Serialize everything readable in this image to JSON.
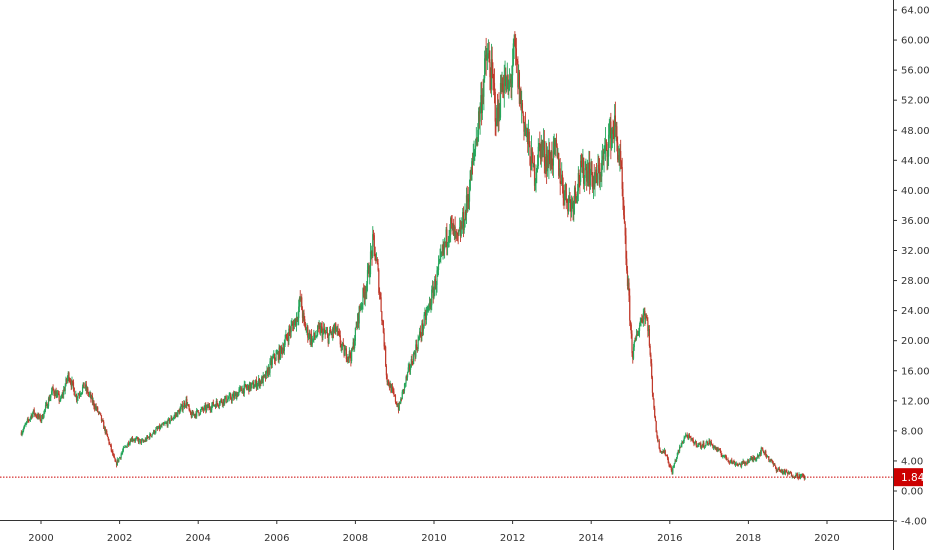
{
  "colors": {
    "up": "#26a65b",
    "down": "#c0392b",
    "price_line": "#cc0000",
    "axis": "#333333",
    "badge_bg": "#cc0000",
    "badge_text": "#ffffff"
  },
  "chart_data": {
    "type": "candlestick",
    "title": "",
    "xlabel": "",
    "ylabel": "",
    "xlim": [
      1999.35,
      2020.9
    ],
    "ylim": [
      -4,
      65
    ],
    "y_ticks": [
      -4,
      0,
      4,
      8,
      12,
      16,
      20,
      24,
      28,
      32,
      36,
      40,
      44,
      48,
      52,
      56,
      60,
      64
    ],
    "y_tick_labels": [
      "-4.00",
      "0.00",
      "4.00",
      "8.00",
      "12.00",
      "16.00",
      "20.00",
      "24.00",
      "28.00",
      "32.00",
      "36.00",
      "40.00",
      "44.00",
      "48.00",
      "52.00",
      "56.00",
      "60.00",
      "64.00"
    ],
    "x_ticks": [
      2000,
      2002,
      2004,
      2006,
      2008,
      2010,
      2012,
      2014,
      2016,
      2018,
      2020
    ],
    "x_tick_labels": [
      "2000",
      "2002",
      "2004",
      "2006",
      "2008",
      "2010",
      "2012",
      "2014",
      "2016",
      "2018",
      "2020"
    ],
    "last_price": 1.84,
    "last_price_label": "1.84",
    "grid": false,
    "close_series": [
      [
        1999.5,
        7.8
      ],
      [
        1999.8,
        10.5
      ],
      [
        2000.0,
        9.5
      ],
      [
        2000.3,
        13.5
      ],
      [
        2000.5,
        12.0
      ],
      [
        2000.7,
        15.5
      ],
      [
        2000.9,
        12.5
      ],
      [
        2001.1,
        14.0
      ],
      [
        2001.3,
        12.0
      ],
      [
        2001.5,
        10.0
      ],
      [
        2001.7,
        7.0
      ],
      [
        2001.9,
        3.5
      ],
      [
        2002.1,
        5.5
      ],
      [
        2002.3,
        7.0
      ],
      [
        2002.6,
        6.5
      ],
      [
        2002.9,
        8.0
      ],
      [
        2003.2,
        9.0
      ],
      [
        2003.5,
        10.5
      ],
      [
        2003.7,
        12.0
      ],
      [
        2003.8,
        10.0
      ],
      [
        2004.2,
        11.0
      ],
      [
        2004.6,
        12.0
      ],
      [
        2004.9,
        12.5
      ],
      [
        2005.1,
        13.5
      ],
      [
        2005.4,
        14.0
      ],
      [
        2005.7,
        15.0
      ],
      [
        2005.9,
        17.5
      ],
      [
        2006.1,
        18.5
      ],
      [
        2006.3,
        21.0
      ],
      [
        2006.5,
        23.0
      ],
      [
        2006.6,
        25.5
      ],
      [
        2006.7,
        22.0
      ],
      [
        2006.9,
        20.0
      ],
      [
        2007.1,
        21.5
      ],
      [
        2007.3,
        20.5
      ],
      [
        2007.5,
        21.5
      ],
      [
        2007.7,
        18.5
      ],
      [
        2007.9,
        18.0
      ],
      [
        2008.1,
        24.0
      ],
      [
        2008.3,
        28.0
      ],
      [
        2008.45,
        33.0
      ],
      [
        2008.55,
        30.0
      ],
      [
        2008.7,
        22.0
      ],
      [
        2008.8,
        15.0
      ],
      [
        2008.95,
        13.0
      ],
      [
        2009.1,
        11.0
      ],
      [
        2009.3,
        15.0
      ],
      [
        2009.6,
        20.0
      ],
      [
        2009.9,
        25.0
      ],
      [
        2010.2,
        31.0
      ],
      [
        2010.4,
        35.5
      ],
      [
        2010.6,
        33.0
      ],
      [
        2010.8,
        37.0
      ],
      [
        2011.0,
        44.0
      ],
      [
        2011.2,
        52.0
      ],
      [
        2011.35,
        58.0
      ],
      [
        2011.5,
        54.0
      ],
      [
        2011.6,
        49.0
      ],
      [
        2011.75,
        55.0
      ],
      [
        2011.9,
        53.0
      ],
      [
        2012.05,
        58.5
      ],
      [
        2012.2,
        52.0
      ],
      [
        2012.4,
        46.0
      ],
      [
        2012.55,
        42.0
      ],
      [
        2012.7,
        46.0
      ],
      [
        2012.9,
        44.0
      ],
      [
        2013.1,
        45.0
      ],
      [
        2013.3,
        40.0
      ],
      [
        2013.5,
        38.0
      ],
      [
        2013.7,
        42.0
      ],
      [
        2013.9,
        43.0
      ],
      [
        2014.1,
        41.0
      ],
      [
        2014.25,
        43.0
      ],
      [
        2014.45,
        47.0
      ],
      [
        2014.6,
        48.5
      ],
      [
        2014.75,
        43.0
      ],
      [
        2014.85,
        34.0
      ],
      [
        2014.95,
        26.0
      ],
      [
        2015.05,
        18.0
      ],
      [
        2015.15,
        20.5
      ],
      [
        2015.25,
        22.5
      ],
      [
        2015.35,
        24.0
      ],
      [
        2015.45,
        22.0
      ],
      [
        2015.55,
        14.0
      ],
      [
        2015.65,
        8.0
      ],
      [
        2015.75,
        5.5
      ],
      [
        2015.9,
        5.0
      ],
      [
        2016.05,
        2.5
      ],
      [
        2016.2,
        5.0
      ],
      [
        2016.4,
        7.5
      ],
      [
        2016.6,
        6.5
      ],
      [
        2016.8,
        6.0
      ],
      [
        2017.0,
        6.5
      ],
      [
        2017.2,
        5.5
      ],
      [
        2017.4,
        4.5
      ],
      [
        2017.6,
        3.8
      ],
      [
        2017.8,
        3.5
      ],
      [
        2018.0,
        4.0
      ],
      [
        2018.2,
        4.5
      ],
      [
        2018.35,
        5.5
      ],
      [
        2018.5,
        4.5
      ],
      [
        2018.7,
        3.0
      ],
      [
        2018.9,
        2.5
      ],
      [
        2019.1,
        2.2
      ],
      [
        2019.3,
        2.0
      ],
      [
        2019.45,
        1.84
      ]
    ]
  }
}
